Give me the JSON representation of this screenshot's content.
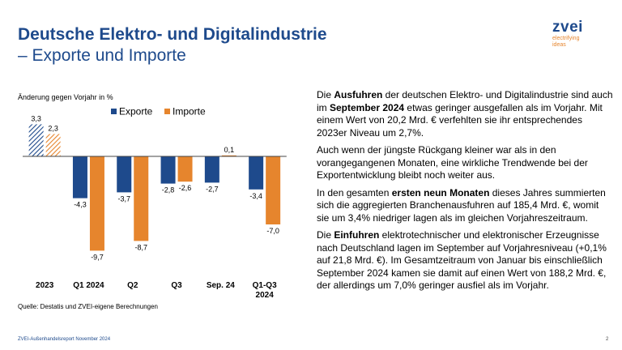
{
  "title": {
    "line1": "Deutsche Elektro- und Digitalindustrie",
    "line2": "– Exporte und Importe"
  },
  "logo": {
    "word": "zvei",
    "tag1": "electrifying",
    "tag2": "ideas"
  },
  "source": "Quelle: Destatis und ZVEI-eigene Berechnungen",
  "footer": "ZVEI-Außenhandelsreport November 2024",
  "page_number": "2",
  "colors": {
    "exporte": "#1e4a8c",
    "importe": "#e6852d",
    "title": "#1e4a8c"
  },
  "chart_data": {
    "type": "bar",
    "ylabel": "Änderung gegen Vorjahr in %",
    "categories": [
      "2023",
      "Q1 2024",
      "Q2",
      "Q3",
      "Sep. 24",
      "Q1-Q3 2024"
    ],
    "series": [
      {
        "name": "Exporte",
        "values": [
          3.3,
          -4.3,
          -3.7,
          -2.8,
          -2.7,
          -3.4
        ],
        "labels": [
          "3,3",
          "-4,3",
          "-3,7",
          "-2,8",
          "-2,7",
          "-3,4"
        ]
      },
      {
        "name": "Importe",
        "values": [
          2.3,
          -9.7,
          -8.7,
          -2.6,
          0.1,
          -7.0
        ],
        "labels": [
          "2,3",
          "-9,7",
          "-8,7",
          "-2,6",
          "0,1",
          "-7,0"
        ]
      }
    ],
    "legend": "top",
    "grid": false,
    "hatched_categories": [
      "2023"
    ]
  },
  "paragraphs": [
    [
      {
        "t": "Die ",
        "b": false
      },
      {
        "t": "Ausfuhren",
        "b": true
      },
      {
        "t": " der deutschen Elektro- und Digitalindustrie sind auch im ",
        "b": false
      },
      {
        "t": "September 2024",
        "b": true
      },
      {
        "t": " etwas geringer ausgefallen als im Vorjahr. Mit einem Wert von 20,2 Mrd. € verfehlten sie ihr entsprechendes 2023er Niveau um 2,7%.",
        "b": false
      }
    ],
    [
      {
        "t": "Auch wenn der jüngste Rückgang kleiner war als in den vorangegangenen Monaten, eine wirkliche Trendwende bei der Exportentwicklung bleibt noch weiter aus.",
        "b": false
      }
    ],
    [
      {
        "t": "In den gesamten ",
        "b": false
      },
      {
        "t": "ersten neun Monaten",
        "b": true
      },
      {
        "t": " dieses Jahres summierten sich die aggregierten Branchenausfuhren auf 185,4 Mrd. €, womit sie um 3,4% niedriger lagen als im gleichen Vorjahreszeitraum.",
        "b": false
      }
    ],
    [
      {
        "t": "Die ",
        "b": false
      },
      {
        "t": "Einfuhren",
        "b": true
      },
      {
        "t": " elektrotechnischer und elektronischer Erzeugnisse nach Deutschland lagen im September auf Vorjahresniveau (+0,1% auf 21,8 Mrd. €). Im Gesamtzeitraum von Januar bis einschließlich September 2024 kamen sie damit auf einen Wert von 188,2 Mrd. €, der allerdings um 7,0% geringer ausfiel als im Vorjahr.",
        "b": false
      }
    ]
  ]
}
